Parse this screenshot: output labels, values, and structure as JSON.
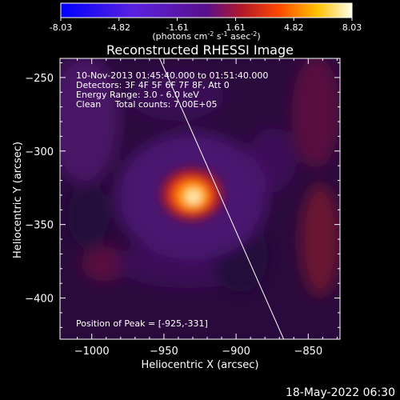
{
  "colorbar": {
    "ticks": [
      "-8.03",
      "-4.82",
      "-1.61",
      "1.61",
      "4.82",
      "8.03"
    ],
    "min": -8.03,
    "max": 8.03,
    "unit_parts": [
      "(photons cm",
      "-2",
      " s",
      "-1",
      " asec",
      "-2",
      ")"
    ]
  },
  "chart_data": {
    "type": "heatmap",
    "title": "Reconstructed RHESSI Image",
    "xlabel": "Heliocentric X (arcsec)",
    "ylabel": "Heliocentric Y (arcsec)",
    "xlim": [
      -1022,
      -828
    ],
    "ylim": [
      -428,
      -237
    ],
    "xticks": [
      -1000,
      -950,
      -900,
      -850
    ],
    "xtick_labels": [
      "−1000",
      "−950",
      "−900",
      "−850"
    ],
    "yticks": [
      -250,
      -300,
      -350,
      -400
    ],
    "ytick_labels": [
      "−250",
      "−300",
      "−350",
      "−400"
    ],
    "peak": {
      "x": -925,
      "y": -331,
      "value": 8.03
    },
    "limb_line": [
      [
        -953,
        -237
      ],
      [
        -867,
        -428
      ]
    ],
    "info_lines": [
      "10-Nov-2013 01:45:40.000 to 01:51:40.000",
      "Detectors: 3F 4F 5F 6F 7F 8F, Att 0",
      "Energy Range: 3.0 - 6.0 keV",
      "Clean     Total counts: 7.00E+05"
    ],
    "peak_label": "Position of Peak = [-925,-331]"
  },
  "footer_date": "18-May-2022 06:30"
}
